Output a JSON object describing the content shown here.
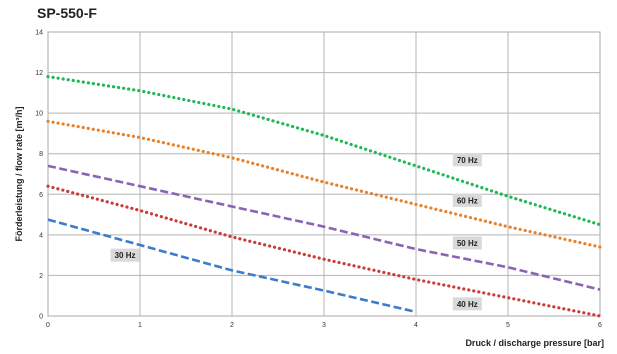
{
  "chart_data": {
    "type": "line",
    "title": "SP-550-F",
    "xlabel": "Druck / discharge pressure [bar]",
    "ylabel": "Förderleistung / flow rate  [m³/h]",
    "xlim": [
      0,
      6
    ],
    "ylim": [
      0,
      14
    ],
    "xticks": [
      0,
      1,
      2,
      3,
      4,
      5,
      6
    ],
    "yticks": [
      0,
      2,
      4,
      6,
      8,
      10,
      12,
      14
    ],
    "grid": true,
    "legend": "inline labels",
    "series": [
      {
        "name": "70 Hz",
        "color": "#1db954",
        "style": "dotted",
        "label_at": [
          4.4,
          7.7
        ],
        "points": [
          [
            0,
            11.8
          ],
          [
            1,
            11.1
          ],
          [
            2,
            10.2
          ],
          [
            3,
            8.9
          ],
          [
            4,
            7.4
          ],
          [
            5,
            5.9
          ],
          [
            6,
            4.5
          ]
        ]
      },
      {
        "name": "60 Hz",
        "color": "#e8812a",
        "style": "dotted",
        "label_at": [
          4.4,
          5.7
        ],
        "points": [
          [
            0,
            9.6
          ],
          [
            1,
            8.8
          ],
          [
            2,
            7.8
          ],
          [
            3,
            6.6
          ],
          [
            4,
            5.5
          ],
          [
            5,
            4.4
          ],
          [
            6,
            3.4
          ]
        ]
      },
      {
        "name": "50 Hz",
        "color": "#8a63b5",
        "style": "dashed",
        "label_at": [
          4.4,
          3.6
        ],
        "points": [
          [
            0,
            7.4
          ],
          [
            1,
            6.4
          ],
          [
            2,
            5.4
          ],
          [
            3,
            4.4
          ],
          [
            4,
            3.3
          ],
          [
            5,
            2.4
          ],
          [
            6,
            1.3
          ]
        ]
      },
      {
        "name": "40 Hz",
        "color": "#cc3a3a",
        "style": "dotted",
        "label_at": [
          4.4,
          0.6
        ],
        "points": [
          [
            0,
            6.4
          ],
          [
            1,
            5.2
          ],
          [
            2,
            3.9
          ],
          [
            3,
            2.8
          ],
          [
            4,
            1.8
          ],
          [
            5,
            0.9
          ],
          [
            6,
            0
          ]
        ]
      },
      {
        "name": "30 Hz",
        "color": "#3d7cc9",
        "style": "dashed",
        "label_at": [
          0.68,
          3.0
        ],
        "points": [
          [
            0,
            4.75
          ],
          [
            1,
            3.5
          ],
          [
            2,
            2.25
          ],
          [
            3,
            1.25
          ],
          [
            4,
            0.2
          ]
        ]
      }
    ]
  }
}
